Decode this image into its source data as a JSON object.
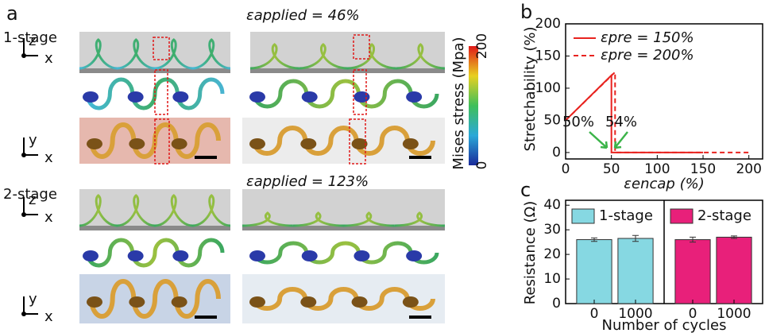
{
  "panel_a": {
    "label": "a",
    "row_labels": [
      "1-stage",
      "2-stage"
    ],
    "axes": [
      {
        "v": "z",
        "h": "x"
      },
      {
        "v": "y",
        "h": "x"
      },
      {
        "v": "z",
        "h": "x"
      },
      {
        "v": "y",
        "h": "x"
      }
    ],
    "conditions": [
      "εapplied = 46%",
      "εapplied = 123%"
    ],
    "colorbar": {
      "label": "Mises stress (Mpa)",
      "ticks": [
        0,
        200
      ]
    }
  },
  "chart_data": [
    {
      "type": "line",
      "panel": "b",
      "xlabel": "εencap (%)",
      "ylabel": "Stretchability (%)",
      "xlim": [
        0,
        215
      ],
      "ylim": [
        -10,
        200
      ],
      "xticks": [
        0,
        50,
        100,
        150,
        200
      ],
      "yticks": [
        0,
        50,
        100,
        150,
        200
      ],
      "legend": "upper right",
      "series": [
        {
          "name": "εpre = 150%",
          "color": "#e8231f",
          "dash": false,
          "x": [
            0,
            50,
            50,
            150
          ],
          "values": [
            50,
            120,
            0,
            0
          ]
        },
        {
          "name": "εpre = 200%",
          "color": "#e8231f",
          "dash": true,
          "x": [
            0,
            54,
            54,
            200
          ],
          "values": [
            50,
            125,
            0,
            0
          ]
        }
      ],
      "annotations": [
        "50%",
        "54%"
      ],
      "annotation_color": "#3cb44a"
    },
    {
      "type": "bar",
      "panel": "c",
      "xlabel": "Number of cycles",
      "ylabel": "Resistance (Ω)",
      "categories": [
        "0",
        "1000"
      ],
      "ylim": [
        0,
        42
      ],
      "yticks": [
        0,
        10,
        20,
        30,
        40
      ],
      "series": [
        {
          "name": "1-stage",
          "color": "#86d8e2",
          "values": [
            26,
            26.5
          ],
          "errors": [
            0.7,
            1.2
          ]
        },
        {
          "name": "2-stage",
          "color": "#e8207a",
          "values": [
            26,
            27
          ],
          "errors": [
            1.0,
            0.5
          ]
        }
      ]
    }
  ]
}
